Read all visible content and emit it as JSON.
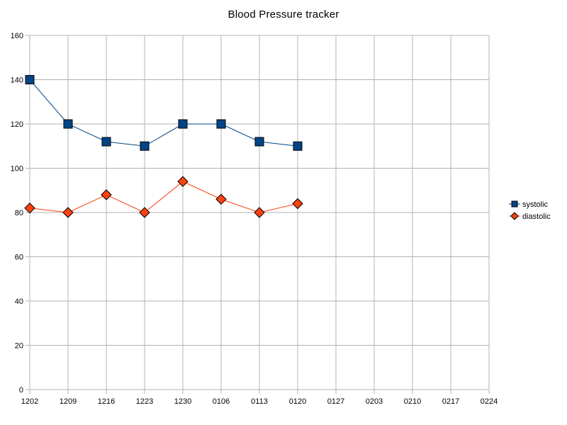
{
  "chart_data": {
    "type": "line",
    "title": "Blood Pressure tracker",
    "categories": [
      "1202",
      "1209",
      "1216",
      "1223",
      "1230",
      "0106",
      "0113",
      "0120",
      "0127",
      "0203",
      "0210",
      "0217",
      "0224"
    ],
    "series": [
      {
        "name": "systolic",
        "color": "#004586",
        "marker": "square",
        "values": [
          140,
          120,
          112,
          110,
          120,
          120,
          112,
          110,
          null,
          null,
          null,
          null,
          null
        ]
      },
      {
        "name": "diastolic",
        "color": "#ff420e",
        "marker": "diamond",
        "values": [
          82,
          80,
          88,
          80,
          94,
          86,
          80,
          84,
          null,
          null,
          null,
          null,
          null
        ]
      }
    ],
    "xlabel": "",
    "ylabel": "",
    "ylim": [
      0,
      160
    ],
    "ytick_step": 20,
    "grid": true,
    "legend_position": "right",
    "grid_color": "#b3b3b3",
    "text_color": "#000000",
    "background_color": "#ffffff"
  }
}
